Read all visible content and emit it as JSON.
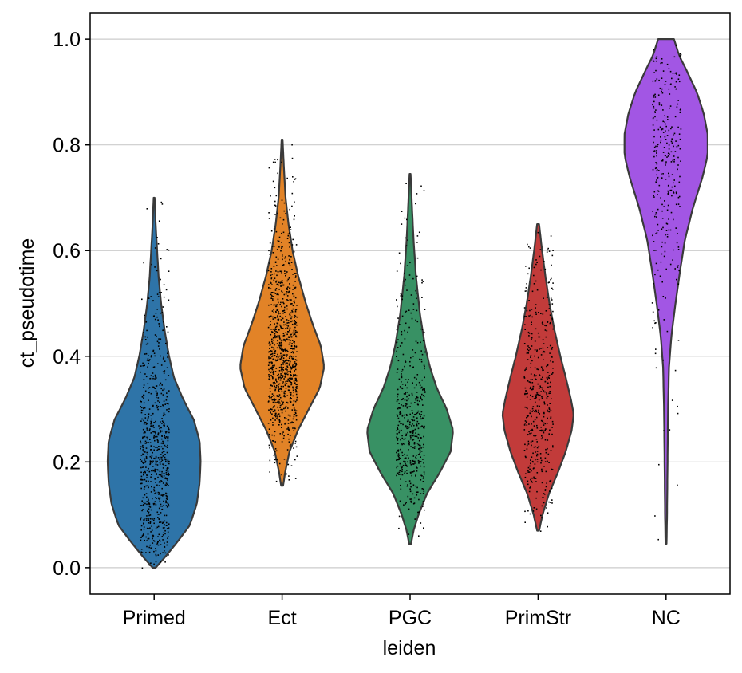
{
  "chart_data": {
    "type": "violin",
    "xlabel": "leiden",
    "ylabel": "ct_pseudotime",
    "ylim": [
      -0.05,
      1.05
    ],
    "yticks": [
      0.0,
      0.2,
      0.4,
      0.6,
      0.8,
      1.0
    ],
    "ytick_labels": [
      "0.0",
      "0.2",
      "0.4",
      "0.6",
      "0.8",
      "1.0"
    ],
    "grid": "horizontal",
    "categories": [
      "Primed",
      "Ect",
      "PGC",
      "PrimStr",
      "NC"
    ],
    "series": [
      {
        "category": "Primed",
        "color": "#2e74a8",
        "min": 0.0,
        "max": 0.7,
        "density": [
          [
            0.0,
            0.03
          ],
          [
            0.02,
            0.22
          ],
          [
            0.05,
            0.48
          ],
          [
            0.08,
            0.72
          ],
          [
            0.12,
            0.86
          ],
          [
            0.16,
            0.92
          ],
          [
            0.2,
            0.94
          ],
          [
            0.24,
            0.92
          ],
          [
            0.28,
            0.8
          ],
          [
            0.32,
            0.58
          ],
          [
            0.36,
            0.4
          ],
          [
            0.4,
            0.3
          ],
          [
            0.45,
            0.21
          ],
          [
            0.5,
            0.14
          ],
          [
            0.55,
            0.09
          ],
          [
            0.6,
            0.06
          ],
          [
            0.65,
            0.03
          ],
          [
            0.7,
            0.01
          ]
        ],
        "n_points": 700
      },
      {
        "category": "Ect",
        "color": "#e28327",
        "min": 0.155,
        "max": 0.81,
        "density": [
          [
            0.155,
            0.02
          ],
          [
            0.18,
            0.06
          ],
          [
            0.22,
            0.15
          ],
          [
            0.26,
            0.32
          ],
          [
            0.3,
            0.54
          ],
          [
            0.34,
            0.76
          ],
          [
            0.38,
            0.85
          ],
          [
            0.42,
            0.78
          ],
          [
            0.46,
            0.62
          ],
          [
            0.5,
            0.48
          ],
          [
            0.55,
            0.33
          ],
          [
            0.6,
            0.21
          ],
          [
            0.65,
            0.13
          ],
          [
            0.7,
            0.07
          ],
          [
            0.75,
            0.04
          ],
          [
            0.81,
            0.01
          ]
        ],
        "n_points": 900
      },
      {
        "category": "PGC",
        "color": "#389164",
        "min": 0.045,
        "max": 0.745,
        "density": [
          [
            0.045,
            0.02
          ],
          [
            0.07,
            0.07
          ],
          [
            0.1,
            0.17
          ],
          [
            0.14,
            0.34
          ],
          [
            0.18,
            0.6
          ],
          [
            0.22,
            0.82
          ],
          [
            0.26,
            0.87
          ],
          [
            0.3,
            0.74
          ],
          [
            0.34,
            0.54
          ],
          [
            0.38,
            0.4
          ],
          [
            0.42,
            0.3
          ],
          [
            0.48,
            0.2
          ],
          [
            0.55,
            0.12
          ],
          [
            0.62,
            0.07
          ],
          [
            0.68,
            0.04
          ],
          [
            0.745,
            0.01
          ]
        ],
        "n_points": 500
      },
      {
        "category": "PrimStr",
        "color": "#c23b3a",
        "min": 0.07,
        "max": 0.65,
        "density": [
          [
            0.07,
            0.02
          ],
          [
            0.1,
            0.09
          ],
          [
            0.14,
            0.22
          ],
          [
            0.18,
            0.4
          ],
          [
            0.22,
            0.56
          ],
          [
            0.26,
            0.68
          ],
          [
            0.29,
            0.72
          ],
          [
            0.32,
            0.66
          ],
          [
            0.36,
            0.56
          ],
          [
            0.4,
            0.45
          ],
          [
            0.45,
            0.33
          ],
          [
            0.5,
            0.23
          ],
          [
            0.55,
            0.15
          ],
          [
            0.6,
            0.08
          ],
          [
            0.65,
            0.02
          ]
        ],
        "n_points": 450
      },
      {
        "category": "NC",
        "color": "#a256e4",
        "min": 0.045,
        "max": 1.0,
        "density": [
          [
            0.045,
            0.01
          ],
          [
            0.1,
            0.02
          ],
          [
            0.2,
            0.03
          ],
          [
            0.3,
            0.04
          ],
          [
            0.38,
            0.06
          ],
          [
            0.44,
            0.11
          ],
          [
            0.5,
            0.19
          ],
          [
            0.56,
            0.28
          ],
          [
            0.62,
            0.38
          ],
          [
            0.68,
            0.54
          ],
          [
            0.74,
            0.74
          ],
          [
            0.78,
            0.84
          ],
          [
            0.82,
            0.84
          ],
          [
            0.86,
            0.76
          ],
          [
            0.9,
            0.62
          ],
          [
            0.94,
            0.42
          ],
          [
            0.97,
            0.26
          ],
          [
            1.0,
            0.16
          ]
        ],
        "n_points": 300
      }
    ]
  }
}
